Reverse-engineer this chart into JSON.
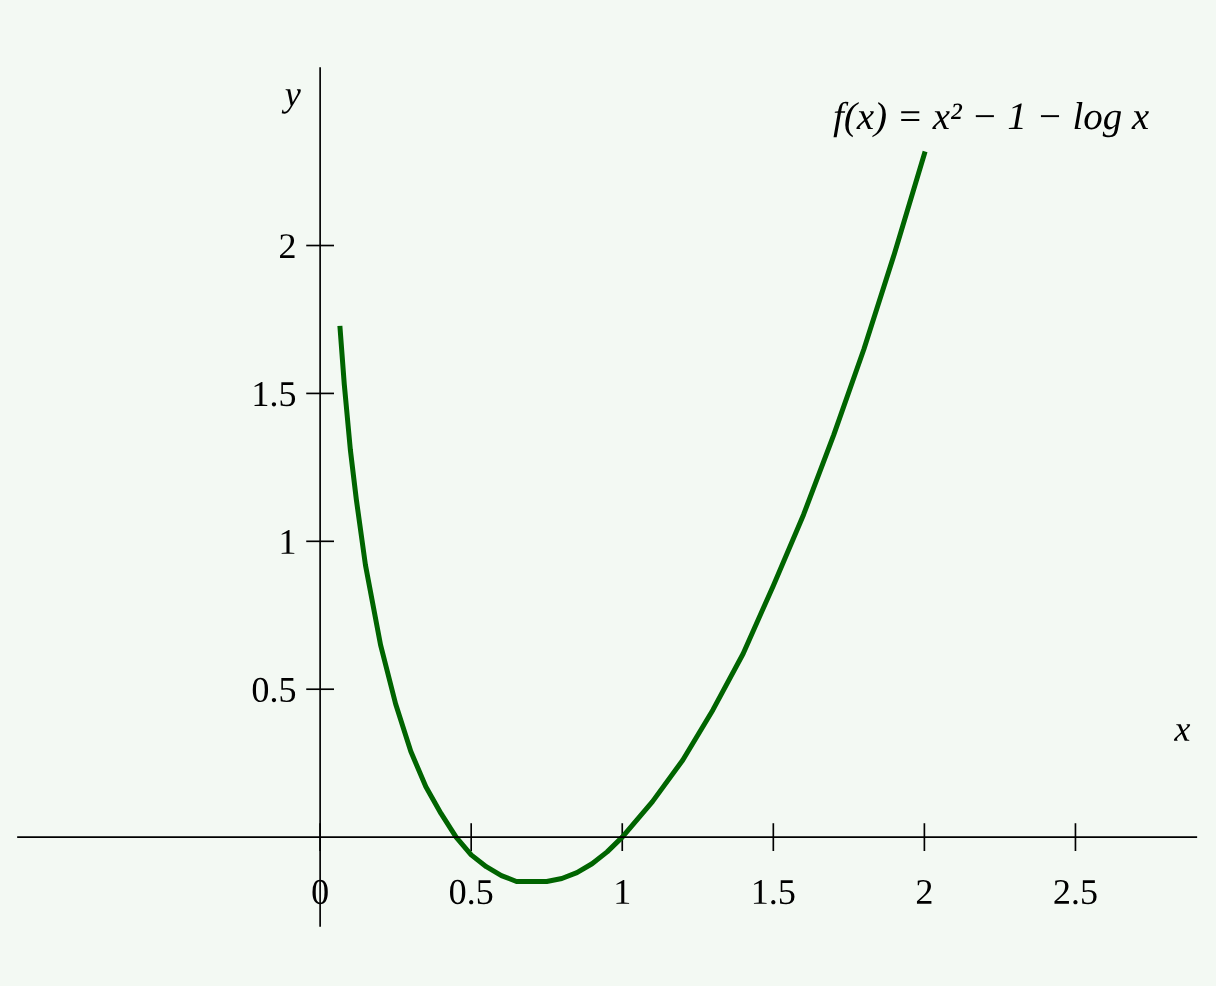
{
  "chart_data": {
    "type": "line",
    "xlabel": "x",
    "ylabel": "y",
    "annotations": [
      "f(x) = x² − 1 − log x"
    ],
    "xlim": [
      -1,
      2.9
    ],
    "ylim": [
      -0.3,
      2.6
    ],
    "xticks": [
      {
        "value": 0,
        "label": "0"
      },
      0.5,
      1,
      1.5,
      2,
      2.5
    ],
    "yticks": [
      0.5,
      1,
      1.5,
      2
    ],
    "marker": "none",
    "line_style": "solid",
    "series": [
      {
        "color": "#006400",
        "x": [
          0.066,
          0.08,
          0.1,
          0.12,
          0.15,
          0.2,
          0.25,
          0.3,
          0.35,
          0.4,
          0.45,
          0.5,
          0.55,
          0.6,
          0.65,
          0.71,
          0.75,
          0.8,
          0.85,
          0.9,
          0.95,
          1,
          1.1,
          1.2,
          1.3,
          1.4,
          1.5,
          1.6,
          1.7,
          1.8,
          1.9,
          2
        ],
        "values": [
          1.72,
          1.53,
          1.31,
          1.14,
          0.92,
          0.65,
          0.45,
          0.29,
          0.17,
          0.08,
          0.0,
          -0.06,
          -0.1,
          -0.13,
          -0.15,
          -0.15,
          -0.15,
          -0.14,
          -0.12,
          -0.09,
          -0.05,
          0,
          0.12,
          0.26,
          0.43,
          0.62,
          0.85,
          1.09,
          1.36,
          1.65,
          1.97,
          2.31
        ]
      }
    ]
  }
}
